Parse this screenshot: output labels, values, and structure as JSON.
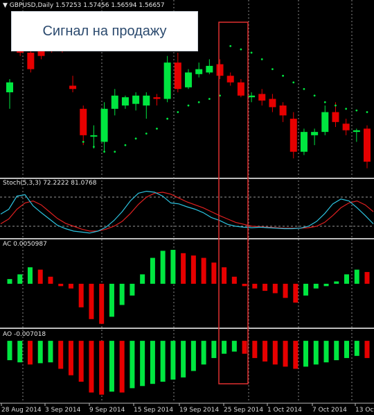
{
  "header": {
    "symbol": "GBPUSD,Daily",
    "open": "1.57253",
    "high": "1.57456",
    "low": "1.56594",
    "close": "1.56657"
  },
  "annotation": {
    "text": "Сигнал на продажу"
  },
  "stoch": {
    "label": "Stoch(5,3,3)",
    "main": "72.2222",
    "signal": "81.0768"
  },
  "ac": {
    "label": "AC",
    "value": "0.0050987"
  },
  "ao": {
    "label": "AO",
    "value": "-0.007018"
  },
  "colors": {
    "bull": "#00e640",
    "bear": "#e60000",
    "sar": "#00e640",
    "stoch_main": "#2cc3e0",
    "stoch_signal": "#e02020",
    "highlight": "#e03030"
  },
  "chart_data": [
    {
      "type": "candlestick",
      "name": "price",
      "candles": [
        {
          "dir": "up",
          "o": 1.64,
          "h": 1.644,
          "l": 1.635,
          "c": 1.643
        },
        {
          "dir": "down",
          "o": 1.659,
          "h": 1.661,
          "l": 1.651,
          "c": 1.652
        },
        {
          "dir": "down",
          "o": 1.652,
          "h": 1.655,
          "l": 1.646,
          "c": 1.647
        },
        {
          "dir": "down",
          "o": 1.653,
          "h": 1.656,
          "l": 1.65,
          "c": 1.651
        },
        {
          "dir": "down",
          "o": 1.657,
          "h": 1.66,
          "l": 1.652,
          "c": 1.654
        },
        {
          "dir": "down",
          "o": 1.6545,
          "h": 1.6575,
          "l": 1.652,
          "c": 1.6535
        },
        {
          "dir": "down",
          "o": 1.642,
          "h": 1.645,
          "l": 1.64,
          "c": 1.641
        },
        {
          "dir": "down",
          "o": 1.635,
          "h": 1.636,
          "l": 1.624,
          "c": 1.627
        },
        {
          "dir": "up",
          "o": 1.627,
          "h": 1.63,
          "l": 1.623,
          "c": 1.627
        },
        {
          "dir": "up",
          "o": 1.625,
          "h": 1.637,
          "l": 1.622,
          "c": 1.635
        },
        {
          "dir": "up",
          "o": 1.635,
          "h": 1.641,
          "l": 1.633,
          "c": 1.639
        },
        {
          "dir": "up",
          "o": 1.636,
          "h": 1.639,
          "l": 1.635,
          "c": 1.6385
        },
        {
          "dir": "up",
          "o": 1.6365,
          "h": 1.64,
          "l": 1.6345,
          "c": 1.639
        },
        {
          "dir": "up",
          "o": 1.636,
          "h": 1.64,
          "l": 1.632,
          "c": 1.639
        },
        {
          "dir": "down",
          "o": 1.6385,
          "h": 1.6395,
          "l": 1.636,
          "c": 1.638
        },
        {
          "dir": "up",
          "o": 1.638,
          "h": 1.651,
          "l": 1.637,
          "c": 1.649
        },
        {
          "dir": "down",
          "o": 1.649,
          "h": 1.652,
          "l": 1.64,
          "c": 1.641
        },
        {
          "dir": "up",
          "o": 1.6415,
          "h": 1.647,
          "l": 1.641,
          "c": 1.646
        },
        {
          "dir": "up",
          "o": 1.6455,
          "h": 1.649,
          "l": 1.6445,
          "c": 1.647
        },
        {
          "dir": "up",
          "o": 1.646,
          "h": 1.65,
          "l": 1.6455,
          "c": 1.648
        },
        {
          "dir": "down",
          "o": 1.6485,
          "h": 1.65,
          "l": 1.644,
          "c": 1.645
        },
        {
          "dir": "down",
          "o": 1.645,
          "h": 1.646,
          "l": 1.642,
          "c": 1.643
        },
        {
          "dir": "down",
          "o": 1.643,
          "h": 1.644,
          "l": 1.6385,
          "c": 1.639
        },
        {
          "dir": "up",
          "o": 1.6385,
          "h": 1.64,
          "l": 1.637,
          "c": 1.639
        },
        {
          "dir": "down",
          "o": 1.6395,
          "h": 1.641,
          "l": 1.636,
          "c": 1.6375
        },
        {
          "dir": "down",
          "o": 1.638,
          "h": 1.6395,
          "l": 1.634,
          "c": 1.6355
        },
        {
          "dir": "down",
          "o": 1.636,
          "h": 1.637,
          "l": 1.631,
          "c": 1.633
        },
        {
          "dir": "down",
          "o": 1.632,
          "h": 1.634,
          "l": 1.62,
          "c": 1.622
        },
        {
          "dir": "up",
          "o": 1.622,
          "h": 1.629,
          "l": 1.621,
          "c": 1.628
        },
        {
          "dir": "up",
          "o": 1.627,
          "h": 1.629,
          "l": 1.624,
          "c": 1.628
        },
        {
          "dir": "up",
          "o": 1.628,
          "h": 1.636,
          "l": 1.627,
          "c": 1.634
        },
        {
          "dir": "down",
          "o": 1.634,
          "h": 1.637,
          "l": 1.6295,
          "c": 1.631
        },
        {
          "dir": "down",
          "o": 1.6305,
          "h": 1.632,
          "l": 1.627,
          "c": 1.6285
        },
        {
          "dir": "up",
          "o": 1.628,
          "h": 1.629,
          "l": 1.625,
          "c": 1.6285
        },
        {
          "dir": "down",
          "o": 1.629,
          "h": 1.63,
          "l": 1.617,
          "c": 1.619
        }
      ],
      "sar": [
        null,
        1.663,
        1.661,
        1.659,
        1.657,
        1.655,
        1.653,
        1.625,
        1.6235,
        1.622,
        1.622,
        1.624,
        1.626,
        1.6275,
        1.629,
        1.632,
        1.634,
        1.636,
        1.637,
        1.638,
        1.639,
        1.654,
        1.653,
        1.652,
        1.65,
        1.647,
        1.645,
        1.643,
        1.641,
        1.639,
        1.637,
        1.636,
        1.635,
        1.6345,
        1.634
      ],
      "ylim": [
        1.615,
        1.665
      ]
    },
    {
      "type": "line",
      "name": "stochastic",
      "ylim": [
        0,
        100
      ],
      "levels": [
        20,
        80
      ],
      "main": [
        45,
        55,
        82,
        85,
        62,
        48,
        35,
        22,
        15,
        10,
        8,
        6,
        10,
        18,
        32,
        50,
        72,
        88,
        92,
        90,
        82,
        68,
        66,
        60,
        55,
        48,
        38,
        32,
        24,
        20,
        18,
        17,
        18,
        17,
        16,
        15,
        15,
        16,
        20,
        30,
        46,
        66,
        76,
        72,
        58,
        42,
        25
      ],
      "signal": [
        25,
        35,
        55,
        68,
        72,
        64,
        50,
        36,
        26,
        20,
        14,
        10,
        10,
        14,
        20,
        30,
        46,
        65,
        80,
        88,
        90,
        86,
        78,
        70,
        64,
        58,
        50,
        42,
        35,
        28,
        24,
        20,
        19,
        18,
        17,
        16,
        16,
        16,
        17,
        20,
        28,
        42,
        58,
        68,
        72,
        64,
        50
      ]
    },
    {
      "type": "bar",
      "name": "accelerator-oscillator",
      "ylim": [
        -0.009,
        0.0075
      ],
      "values": [
        0.001,
        0.002,
        0.0035,
        0.003,
        0.0015,
        -0.0005,
        -0.001,
        -0.005,
        -0.0075,
        -0.0085,
        -0.007,
        -0.0045,
        -0.0025,
        0.002,
        0.0055,
        0.007,
        0.0072,
        0.0065,
        0.006,
        0.0055,
        0.0045,
        0.0035,
        0.0015,
        -0.0005,
        -0.001,
        -0.0015,
        -0.002,
        -0.003,
        -0.004,
        -0.0025,
        -0.001,
        -0.0005,
        0.0005,
        0.002,
        0.003,
        0.0025
      ],
      "colors": [
        "g",
        "g",
        "g",
        "r",
        "r",
        "r",
        "r",
        "r",
        "r",
        "r",
        "g",
        "g",
        "g",
        "g",
        "g",
        "g",
        "g",
        "r",
        "r",
        "r",
        "r",
        "r",
        "r",
        "r",
        "r",
        "r",
        "r",
        "r",
        "r",
        "g",
        "g",
        "g",
        "g",
        "g",
        "g",
        "r"
      ]
    },
    {
      "type": "bar",
      "name": "awesome-oscillator",
      "ylim": [
        -0.014,
        0.0005
      ],
      "values": [
        -0.0045,
        -0.005,
        -0.0055,
        -0.0052,
        -0.005,
        -0.0065,
        -0.008,
        -0.0095,
        -0.012,
        -0.0125,
        -0.0118,
        -0.012,
        -0.011,
        -0.0105,
        -0.01,
        -0.0095,
        -0.009,
        -0.0085,
        -0.007,
        -0.0055,
        -0.004,
        -0.003,
        -0.0025,
        -0.003,
        -0.004,
        -0.0048,
        -0.0055,
        -0.006,
        -0.0065,
        -0.006,
        -0.0055,
        -0.005,
        -0.0045,
        -0.004,
        -0.0035,
        -0.004
      ],
      "colors": [
        "g",
        "g",
        "r",
        "g",
        "g",
        "r",
        "r",
        "r",
        "r",
        "r",
        "g",
        "r",
        "g",
        "g",
        "g",
        "g",
        "g",
        "g",
        "g",
        "g",
        "g",
        "g",
        "g",
        "r",
        "r",
        "r",
        "r",
        "r",
        "r",
        "g",
        "g",
        "g",
        "g",
        "g",
        "g",
        "r"
      ]
    }
  ],
  "x_axis": {
    "labels": [
      "28 Aug 2014",
      "3 Sep 2014",
      "9 Sep 2014",
      "15 Sep 2014",
      "19 Sep 2014",
      "25 Sep 2014",
      "1 Oct 2014",
      "7 Oct 2014",
      "13 Oct"
    ]
  }
}
